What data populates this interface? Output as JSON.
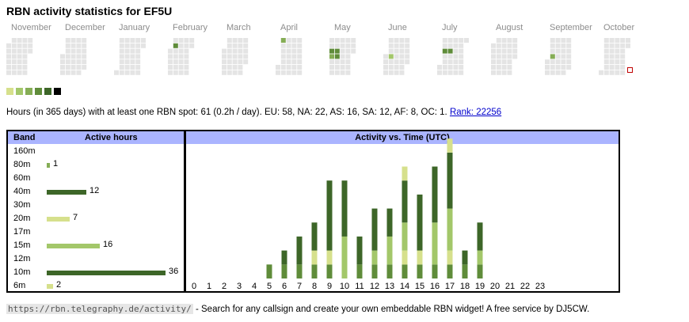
{
  "title": "RBN activity statistics for EF5U",
  "months": [
    "November",
    "December",
    "January",
    "February",
    "March",
    "April",
    "May",
    "June",
    "July",
    "August",
    "September",
    "October"
  ],
  "colors": {
    "empty": "#e4e4e4",
    "levels": [
      "#d6e08c",
      "#a3c76a",
      "#85ad55",
      "#5f8c3a",
      "#3d6628",
      "#000000"
    ],
    "today_border": "#c00000",
    "header": "#aab4ff",
    "link": "#0000cc"
  },
  "heatmap_highlights": [
    {
      "month": "February",
      "cells": [
        [
          0,
          1,
          3
        ],
        [
          1,
          1,
          3
        ]
      ]
    },
    {
      "month": "March",
      "cells": [
        [
          0,
          1,
          0
        ]
      ]
    },
    {
      "month": "April",
      "cells": [
        [
          0,
          0,
          2
        ],
        [
          1,
          0,
          2
        ]
      ]
    },
    {
      "month": "May",
      "cells": [
        [
          0,
          2,
          3
        ],
        [
          1,
          2,
          3
        ],
        [
          0,
          3,
          2
        ],
        [
          1,
          3,
          3
        ]
      ]
    },
    {
      "month": "June",
      "cells": [
        [
          1,
          3,
          1
        ]
      ]
    },
    {
      "month": "July",
      "cells": [
        [
          0,
          1,
          0
        ],
        [
          0,
          2,
          3
        ],
        [
          1,
          2,
          3
        ],
        [
          2,
          2,
          3
        ]
      ]
    },
    {
      "month": "September",
      "cells": [
        [
          1,
          3,
          2
        ]
      ]
    }
  ],
  "summary": {
    "text": "Hours (in 365 days) with at least one RBN spot: 61 (0.2h / day). EU: 58, NA: 22, AS: 16, SA: 12, AF: 8, OC: 1.",
    "rank_label": "Rank: 22256"
  },
  "band_table": {
    "header_band": "Band",
    "header_hours": "Active hours",
    "rows": [
      {
        "band": "160m",
        "hours": null,
        "color": "#85ad55"
      },
      {
        "band": "80m",
        "hours": 1,
        "color": "#85ad55"
      },
      {
        "band": "60m",
        "hours": null,
        "color": "#85ad55"
      },
      {
        "band": "40m",
        "hours": 12,
        "color": "#3d6628"
      },
      {
        "band": "30m",
        "hours": null,
        "color": "#85ad55"
      },
      {
        "band": "20m",
        "hours": 7,
        "color": "#d6e08c"
      },
      {
        "band": "17m",
        "hours": null,
        "color": "#85ad55"
      },
      {
        "band": "15m",
        "hours": 16,
        "color": "#a3c76a"
      },
      {
        "band": "12m",
        "hours": null,
        "color": "#85ad55"
      },
      {
        "band": "10m",
        "hours": 36,
        "color": "#3d6628"
      },
      {
        "band": "6m",
        "hours": 2,
        "color": "#d6e08c"
      }
    ]
  },
  "chart_data": {
    "type": "bar",
    "title": "Activity vs. Time (UTC)",
    "categories": [
      "0",
      "1",
      "2",
      "3",
      "4",
      "5",
      "6",
      "7",
      "8",
      "9",
      "10",
      "11",
      "12",
      "13",
      "14",
      "15",
      "16",
      "17",
      "18",
      "19",
      "20",
      "21",
      "22",
      "23"
    ],
    "series": [
      {
        "name": "15m",
        "color": "#5f8c3a",
        "values": [
          0,
          0,
          0,
          0,
          0,
          1,
          1,
          1,
          1,
          1,
          0,
          1,
          1,
          1,
          1,
          1,
          1,
          1,
          1,
          1,
          0,
          0,
          0,
          0
        ]
      },
      {
        "name": "20m",
        "color": "#d6e08c",
        "values": [
          0,
          0,
          0,
          0,
          0,
          0,
          0,
          0,
          1,
          1,
          0,
          0,
          0,
          0,
          1,
          1,
          0,
          1,
          0,
          0,
          0,
          0,
          0,
          0
        ]
      },
      {
        "name": "10m",
        "color": "#a3c76a",
        "values": [
          0,
          0,
          0,
          0,
          0,
          0,
          0,
          0,
          0,
          0,
          3,
          0,
          1,
          2,
          2,
          0,
          3,
          3,
          0,
          1,
          0,
          0,
          0,
          0
        ]
      },
      {
        "name": "40m",
        "color": "#3d6628",
        "values": [
          0,
          0,
          0,
          0,
          0,
          0,
          1,
          2,
          2,
          5,
          4,
          2,
          3,
          2,
          3,
          4,
          4,
          4,
          1,
          2,
          0,
          0,
          0,
          0
        ]
      },
      {
        "name": "6m",
        "color": "#d6e08c",
        "values": [
          0,
          0,
          0,
          0,
          0,
          0,
          0,
          0,
          0,
          0,
          0,
          0,
          0,
          0,
          1,
          0,
          0,
          1,
          0,
          0,
          0,
          0,
          0,
          0
        ]
      }
    ],
    "ylim": [
      0,
      9.5
    ],
    "xlabel": "",
    "ylabel": ""
  },
  "footer": {
    "url": "https://rbn.telegraphy.de/activity/",
    "text": " - Search for any callsign and create your own embeddable RBN widget! A free service by DJ5CW."
  }
}
